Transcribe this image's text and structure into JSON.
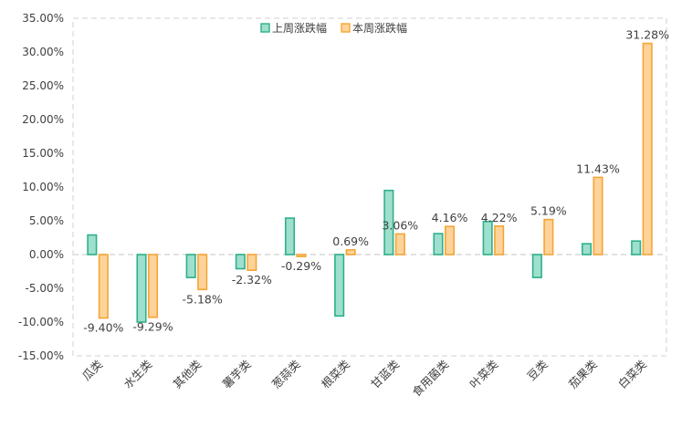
{
  "chart_data": {
    "type": "bar",
    "categories": [
      "瓜类",
      "水生类",
      "其他类",
      "薯芋类",
      "葱蒜类",
      "根菜类",
      "甘蓝类",
      "食用菌类",
      "叶菜类",
      "豆类",
      "茄果类",
      "白菜类"
    ],
    "series": [
      {
        "name": "上周涨跌幅",
        "values": [
          2.9,
          -10.0,
          -3.4,
          -2.1,
          5.4,
          -9.1,
          9.5,
          3.1,
          4.9,
          -3.4,
          1.6,
          2.0
        ]
      },
      {
        "name": "本周涨跌幅",
        "values": [
          -9.4,
          -9.29,
          -5.18,
          -2.32,
          -0.29,
          0.69,
          3.06,
          4.16,
          4.22,
          5.19,
          11.43,
          31.28
        ],
        "data_labels": [
          "-9.40%",
          "-9.29%",
          "-5.18%",
          "-2.32%",
          "-0.29%",
          "0.69%",
          "3.06%",
          "4.16%",
          "4.22%",
          "5.19%",
          "11.43%",
          "31.28%"
        ]
      }
    ],
    "ylim": [
      -15,
      35
    ],
    "yticks": [
      35,
      30,
      25,
      20,
      15,
      10,
      5,
      0,
      -5,
      -10,
      -15
    ],
    "ytick_labels": [
      "35.00%",
      "30.00%",
      "25.00%",
      "20.00%",
      "15.00%",
      "10.00%",
      "5.00%",
      "0.00%",
      "-5.00%",
      "-10.00%",
      "-15.00%"
    ],
    "grid": false,
    "legend_position": "top-center",
    "title": "",
    "xlabel": "",
    "ylabel": "",
    "colors": {
      "series1_fill": "#9fdfcd",
      "series1_stroke": "#2eb08b",
      "series2_fill": "#fdd39a",
      "series2_stroke": "#f4a636",
      "zero_line": "#d9d9d9",
      "frame": "#d9d9d9",
      "text": "#404040"
    }
  }
}
